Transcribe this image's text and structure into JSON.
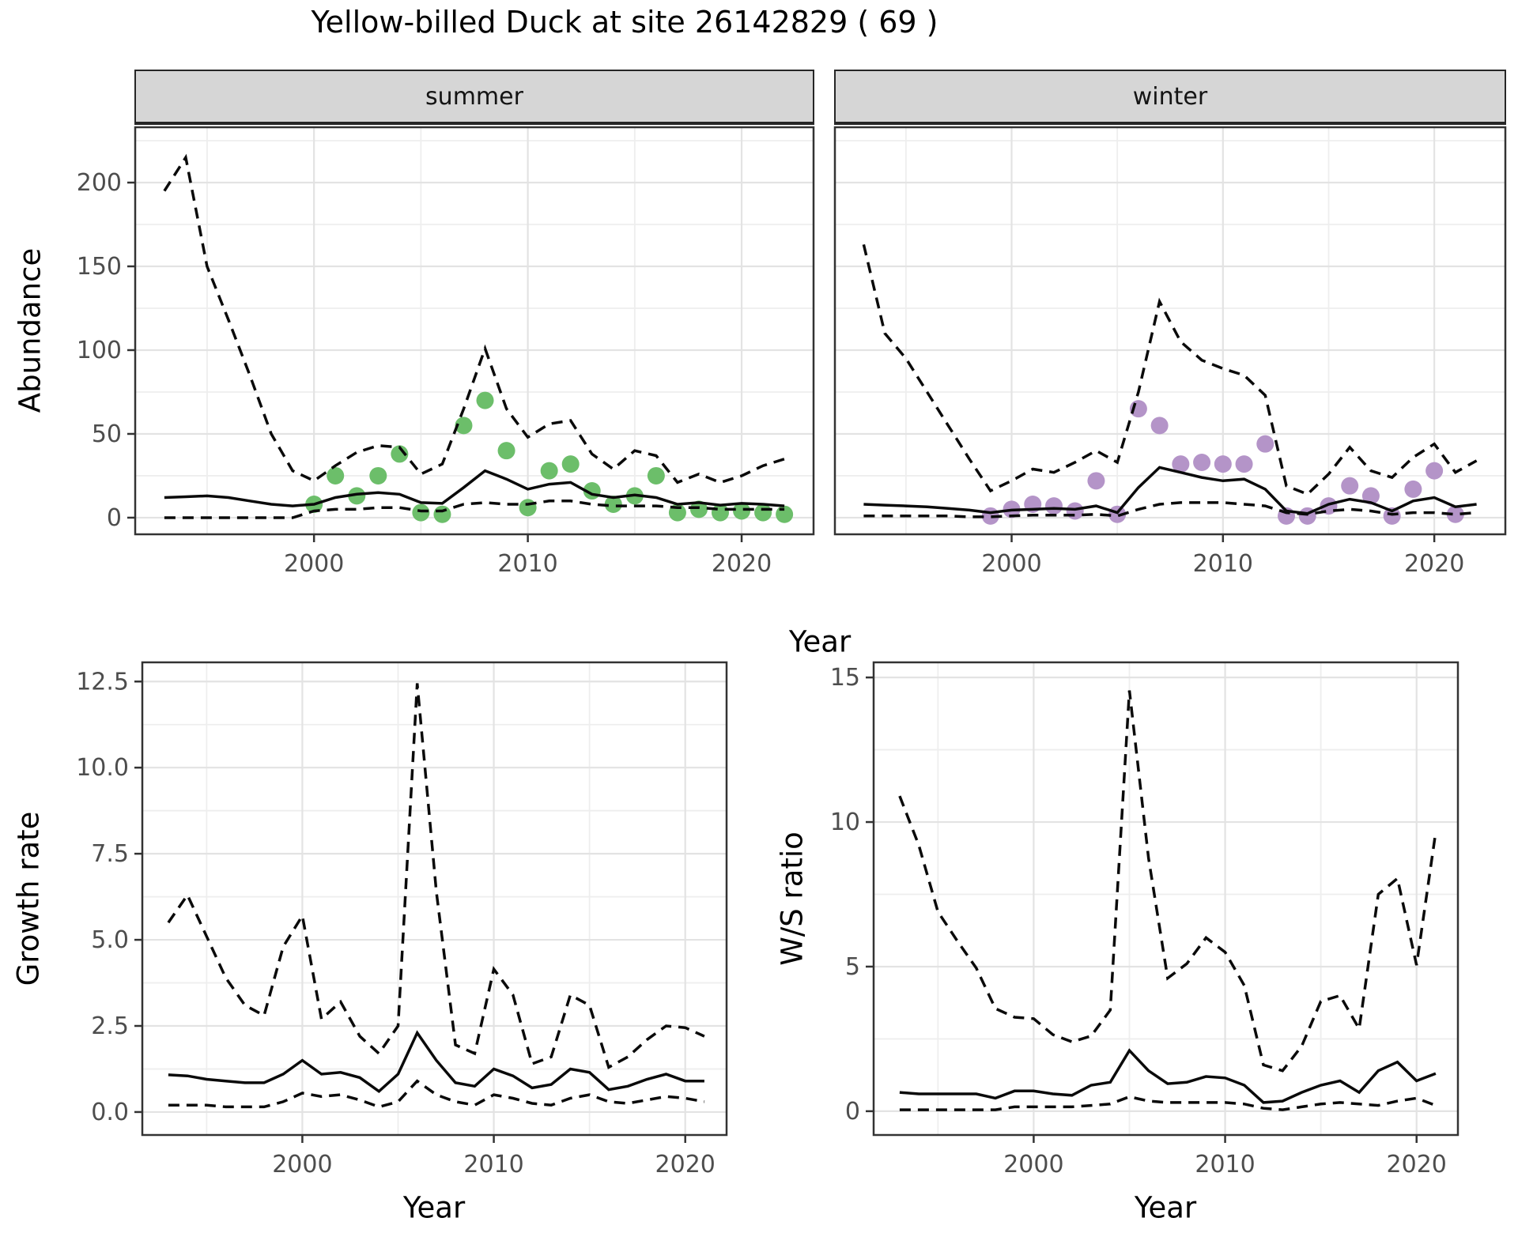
{
  "figure": {
    "title": "Yellow-billed Duck at site 26142829 ( 69 )"
  },
  "colors": {
    "summer_points": "#6cbe6a",
    "winter_points": "#b494c8",
    "line": "#0a0a0a",
    "grid_major": "#e3e3e3",
    "grid_minor": "#eeeeee",
    "panel_border": "#333333",
    "strip_bg": "#d6d6d6",
    "tick_label": "#4d4d4d"
  },
  "chart_data": [
    {
      "type": "line",
      "panel": "abundance-summer",
      "facet": "summer",
      "title": "Yellow-billed Duck at site 26142829 ( 69 )",
      "xlabel": "Year",
      "ylabel": "Abundance",
      "x": [
        1993,
        1994,
        1995,
        1996,
        1997,
        1998,
        1999,
        2000,
        2001,
        2002,
        2003,
        2004,
        2005,
        2006,
        2007,
        2008,
        2009,
        2010,
        2011,
        2012,
        2013,
        2014,
        2015,
        2016,
        2017,
        2018,
        2019,
        2020,
        2021,
        2022
      ],
      "series": [
        {
          "name": "upper-95ci",
          "style": "dashed",
          "values": [
            195,
            215,
            150,
            118,
            85,
            50,
            28,
            22,
            31,
            39,
            43,
            42,
            26,
            32,
            65,
            101,
            65,
            48,
            56,
            58,
            38,
            29,
            40,
            37,
            21,
            26,
            21,
            25,
            31,
            35
          ]
        },
        {
          "name": "median",
          "style": "solid",
          "values": [
            12,
            12.5,
            13,
            12,
            10,
            8,
            7,
            8,
            12,
            14,
            15,
            14,
            9,
            8.5,
            18,
            28,
            23,
            17,
            20,
            21,
            14,
            12,
            13.5,
            12,
            8,
            9,
            7.5,
            8.5,
            8,
            7
          ]
        },
        {
          "name": "lower-95ci",
          "style": "dashed",
          "values": [
            0,
            0,
            0,
            0,
            0,
            0,
            0,
            4,
            5,
            5,
            6,
            6,
            4,
            4,
            8,
            9,
            8,
            8,
            10,
            10,
            8,
            7,
            7,
            7,
            6,
            6,
            5,
            5,
            5,
            5
          ]
        }
      ],
      "points": {
        "name": "observed-counts-summer",
        "color": "#6cbe6a",
        "x": [
          2000,
          2001,
          2002,
          2003,
          2004,
          2005,
          2006,
          2007,
          2008,
          2009,
          2010,
          2011,
          2012,
          2013,
          2014,
          2015,
          2016,
          2017,
          2018,
          2019,
          2020,
          2021,
          2022
        ],
        "y": [
          8,
          25,
          13,
          25,
          38,
          3,
          2,
          55,
          70,
          40,
          6,
          28,
          32,
          16,
          8,
          13,
          25,
          3,
          5,
          3,
          4,
          3,
          2
        ]
      },
      "xlim": [
        1991.6,
        2023.4
      ],
      "ylim": [
        -10.4,
        233.5
      ],
      "xticks": [
        2000,
        2010,
        2020
      ],
      "xticklabels": [
        "2000",
        "2010",
        "2020"
      ],
      "xminor": [
        1995,
        2005,
        2015
      ],
      "yticks": [
        0,
        50,
        100,
        150,
        200
      ],
      "yticklabels": [
        "0",
        "50",
        "100",
        "150",
        "200"
      ],
      "yminor": [
        25,
        75,
        125,
        175,
        225
      ],
      "grid": true,
      "legend": "none",
      "show_y_axis": true
    },
    {
      "type": "line",
      "panel": "abundance-winter",
      "facet": "winter",
      "xlabel": "Year",
      "ylabel": "Abundance",
      "x": [
        1993,
        1994,
        1995,
        1996,
        1997,
        1998,
        1999,
        2000,
        2001,
        2002,
        2003,
        2004,
        2005,
        2006,
        2007,
        2008,
        2009,
        2010,
        2011,
        2012,
        2013,
        2014,
        2015,
        2016,
        2017,
        2018,
        2019,
        2020,
        2021,
        2022
      ],
      "series": [
        {
          "name": "upper-95ci",
          "style": "dashed",
          "values": [
            163,
            110,
            95,
            75,
            55,
            35,
            16,
            22,
            29,
            27,
            33,
            40,
            33,
            75,
            129,
            105,
            94,
            89,
            85,
            73,
            19,
            14,
            26,
            42,
            28,
            24,
            36,
            44,
            27,
            34
          ]
        },
        {
          "name": "median",
          "style": "solid",
          "values": [
            8,
            7.5,
            7,
            6.5,
            5.5,
            4.5,
            3,
            4.5,
            5,
            5.5,
            5,
            7,
            3,
            18,
            30,
            27,
            24,
            22,
            23,
            17,
            4,
            2.5,
            8,
            11,
            9,
            4,
            10,
            12,
            6.5,
            8
          ]
        },
        {
          "name": "lower-95ci",
          "style": "dashed",
          "values": [
            1,
            1,
            1,
            1,
            1,
            0.5,
            0.5,
            1,
            1.5,
            1.5,
            1.5,
            2,
            1,
            5,
            8,
            9,
            9,
            9,
            8,
            7,
            3,
            2,
            4,
            5,
            4,
            2,
            3,
            3,
            2,
            3
          ]
        }
      ],
      "points": {
        "name": "observed-counts-winter",
        "color": "#b494c8",
        "x": [
          1999,
          2000,
          2001,
          2002,
          2003,
          2004,
          2005,
          2006,
          2007,
          2008,
          2009,
          2010,
          2011,
          2012,
          2013,
          2014,
          2015,
          2016,
          2017,
          2018,
          2019,
          2020,
          2021
        ],
        "y": [
          1,
          5,
          8,
          7,
          4,
          22,
          2,
          65,
          55,
          32,
          33,
          32,
          32,
          44,
          1,
          1,
          7,
          19,
          13,
          1,
          17,
          28,
          2
        ]
      },
      "xlim": [
        1991.6,
        2023.4
      ],
      "ylim": [
        -10.4,
        233.5
      ],
      "xticks": [
        2000,
        2010,
        2020
      ],
      "xticklabels": [
        "2000",
        "2010",
        "2020"
      ],
      "xminor": [
        1995,
        2005,
        2015
      ],
      "yticks": [
        0,
        50,
        100,
        150,
        200
      ],
      "yticklabels": [
        "0",
        "50",
        "100",
        "150",
        "200"
      ],
      "yminor": [
        25,
        75,
        125,
        175,
        225
      ],
      "grid": true,
      "legend": "none",
      "show_y_axis": false
    },
    {
      "type": "line",
      "panel": "growth-rate",
      "xlabel": "Year",
      "ylabel": "Growth rate",
      "x": [
        1993,
        1994,
        1995,
        1996,
        1997,
        1998,
        1999,
        2000,
        2001,
        2002,
        2003,
        2004,
        2005,
        2006,
        2007,
        2008,
        2009,
        2010,
        2011,
        2012,
        2013,
        2014,
        2015,
        2016,
        2017,
        2018,
        2019,
        2020,
        2021
      ],
      "series": [
        {
          "name": "upper-95ci",
          "style": "dashed",
          "values": [
            5.5,
            6.3,
            5.1,
            3.9,
            3.1,
            2.8,
            4.8,
            5.7,
            2.7,
            3.2,
            2.2,
            1.7,
            2.5,
            12.45,
            6.4,
            1.95,
            1.7,
            4.15,
            3.4,
            1.4,
            1.6,
            3.4,
            3.1,
            1.3,
            1.6,
            2.1,
            2.5,
            2.45,
            2.2
          ]
        },
        {
          "name": "median",
          "style": "solid",
          "values": [
            1.08,
            1.05,
            0.95,
            0.9,
            0.85,
            0.85,
            1.1,
            1.5,
            1.1,
            1.15,
            1.0,
            0.6,
            1.1,
            2.3,
            1.5,
            0.85,
            0.75,
            1.25,
            1.05,
            0.7,
            0.8,
            1.25,
            1.15,
            0.65,
            0.75,
            0.95,
            1.1,
            0.9,
            0.9
          ]
        },
        {
          "name": "lower-95ci",
          "style": "dashed",
          "values": [
            0.2,
            0.2,
            0.2,
            0.15,
            0.15,
            0.15,
            0.3,
            0.55,
            0.45,
            0.5,
            0.35,
            0.15,
            0.3,
            0.9,
            0.5,
            0.3,
            0.2,
            0.5,
            0.4,
            0.25,
            0.2,
            0.4,
            0.5,
            0.3,
            0.25,
            0.35,
            0.45,
            0.4,
            0.3
          ]
        }
      ],
      "xlim": [
        1991.6,
        2022.2
      ],
      "ylim": [
        -0.69,
        13.08
      ],
      "xticks": [
        2000,
        2010,
        2020
      ],
      "xticklabels": [
        "2000",
        "2010",
        "2020"
      ],
      "xminor": [
        1995,
        2005,
        2015
      ],
      "yticks": [
        0,
        2.5,
        5,
        7.5,
        10,
        12.5
      ],
      "yticklabels": [
        "0.0",
        "2.5",
        "5.0",
        "7.5",
        "10.0",
        "12.5"
      ],
      "yminor": [
        1.25,
        3.75,
        6.25,
        8.75,
        11.25
      ],
      "grid": true,
      "legend": "none",
      "show_y_axis": true
    },
    {
      "type": "line",
      "panel": "ws-ratio",
      "xlabel": "Year",
      "ylabel": "W/S ratio",
      "x": [
        1993,
        1994,
        1995,
        1996,
        1997,
        1998,
        1999,
        2000,
        2001,
        2002,
        2003,
        2004,
        2005,
        2006,
        2007,
        2008,
        2009,
        2010,
        2011,
        2012,
        2013,
        2014,
        2015,
        2016,
        2017,
        2018,
        2019,
        2020,
        2021
      ],
      "series": [
        {
          "name": "upper-95ci",
          "style": "dashed",
          "values": [
            10.9,
            9.2,
            6.9,
            5.9,
            4.95,
            3.55,
            3.25,
            3.2,
            2.65,
            2.4,
            2.6,
            3.5,
            14.55,
            8.75,
            4.6,
            5.1,
            6.0,
            5.5,
            4.35,
            1.6,
            1.4,
            2.25,
            3.8,
            4.0,
            2.85,
            7.5,
            8.05,
            5.05,
            9.65
          ]
        },
        {
          "name": "median",
          "style": "solid",
          "values": [
            0.65,
            0.6,
            0.6,
            0.6,
            0.6,
            0.45,
            0.7,
            0.7,
            0.6,
            0.55,
            0.9,
            1.0,
            2.1,
            1.4,
            0.95,
            1.0,
            1.2,
            1.15,
            0.9,
            0.3,
            0.35,
            0.65,
            0.9,
            1.05,
            0.65,
            1.4,
            1.7,
            1.05,
            1.3
          ]
        },
        {
          "name": "lower-95ci",
          "style": "dashed",
          "values": [
            0.05,
            0.05,
            0.05,
            0.05,
            0.05,
            0.05,
            0.15,
            0.15,
            0.15,
            0.15,
            0.2,
            0.25,
            0.5,
            0.35,
            0.3,
            0.3,
            0.3,
            0.3,
            0.25,
            0.1,
            0.05,
            0.15,
            0.25,
            0.3,
            0.25,
            0.2,
            0.35,
            0.45,
            0.2
          ]
        }
      ],
      "xlim": [
        1991.6,
        2022.2
      ],
      "ylim": [
        -0.85,
        15.55
      ],
      "xticks": [
        2000,
        2010,
        2020
      ],
      "xticklabels": [
        "2000",
        "2010",
        "2020"
      ],
      "xminor": [
        1995,
        2005,
        2015
      ],
      "yticks": [
        0,
        5,
        10,
        15
      ],
      "yticklabels": [
        "0",
        "5",
        "10",
        "15"
      ],
      "yminor": [
        2.5,
        7.5,
        12.5
      ],
      "grid": true,
      "legend": "none",
      "show_y_axis": true
    }
  ]
}
